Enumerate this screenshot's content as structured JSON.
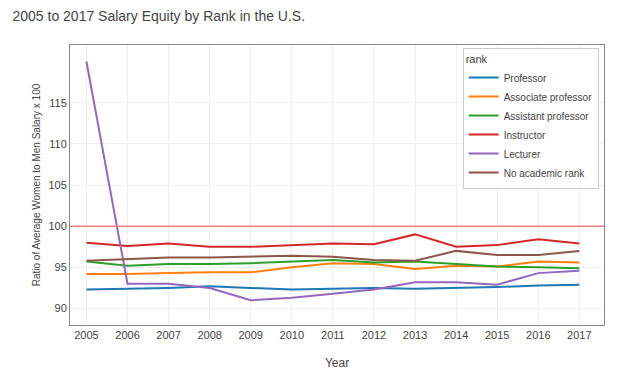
{
  "chart_data": {
    "type": "line",
    "title": "2005 to 2017 Salary Equity by Rank in the U.S.",
    "xlabel": "Year",
    "ylabel": "Ratio of Average Women to Men Salary x 100",
    "x": [
      2005,
      2006,
      2007,
      2008,
      2009,
      2010,
      2011,
      2012,
      2013,
      2014,
      2015,
      2016,
      2017
    ],
    "series": [
      {
        "name": "Professor",
        "values": [
          92.3,
          92.4,
          92.5,
          92.7,
          92.5,
          92.3,
          92.4,
          92.5,
          92.4,
          92.5,
          92.6,
          92.8,
          92.9
        ]
      },
      {
        "name": "Associate professor",
        "values": [
          94.2,
          94.2,
          94.3,
          94.4,
          94.4,
          95.0,
          95.5,
          95.4,
          94.8,
          95.2,
          95.1,
          95.7,
          95.6
        ]
      },
      {
        "name": "Assistant professor",
        "values": [
          95.7,
          95.2,
          95.4,
          95.4,
          95.5,
          95.7,
          95.9,
          95.6,
          95.7,
          95.4,
          95.1,
          95.0,
          94.9
        ]
      },
      {
        "name": "Instructor",
        "values": [
          98.0,
          97.6,
          97.9,
          97.5,
          97.5,
          97.7,
          97.9,
          97.8,
          99.0,
          97.5,
          97.7,
          98.4,
          97.9
        ]
      },
      {
        "name": "Lecturer",
        "values": [
          120.0,
          93.0,
          93.0,
          92.5,
          91.0,
          91.3,
          91.8,
          92.3,
          93.2,
          93.2,
          92.9,
          94.3,
          94.6
        ]
      },
      {
        "name": "No academic rank",
        "values": [
          95.8,
          96.0,
          96.2,
          96.2,
          96.3,
          96.4,
          96.3,
          95.9,
          95.8,
          97.0,
          96.5,
          96.5,
          97.0
        ]
      }
    ],
    "xlim": [
      2004.6,
      2017.6
    ],
    "xticks": [
      2005,
      2006,
      2007,
      2008,
      2009,
      2010,
      2011,
      2012,
      2013,
      2014,
      2015,
      2016,
      2017
    ],
    "ylim": [
      88,
      122
    ],
    "yticks": [
      90,
      95,
      100,
      105,
      110,
      115
    ],
    "grid": true,
    "legend": "upper right",
    "legend_title": "rank",
    "reference_line": {
      "value": 100,
      "color": "#F08080"
    }
  }
}
